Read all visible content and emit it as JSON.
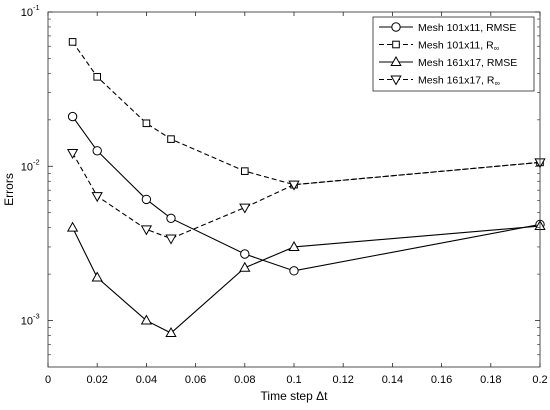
{
  "chart_data": {
    "type": "line",
    "xlabel": "Time step Δt",
    "ylabel": "Errors",
    "yscale": "log",
    "xlim": [
      0,
      0.2
    ],
    "ylim": [
      0.0005,
      0.1
    ],
    "x_ticks": [
      0,
      0.02,
      0.04,
      0.06,
      0.08,
      0.1,
      0.12,
      0.14,
      0.16,
      0.18,
      0.2
    ],
    "x_tick_labels": [
      "0",
      "0.02",
      "0.04",
      "0.06",
      "0.08",
      "0.1",
      "0.12",
      "0.14",
      "0.16",
      "0.18",
      "0.2"
    ],
    "y_ticks": [
      {
        "value": 0.001,
        "base": "10",
        "exp": "-3"
      },
      {
        "value": 0.01,
        "base": "10",
        "exp": "-2"
      },
      {
        "value": 0.1,
        "base": "10",
        "exp": "-1"
      }
    ],
    "grid": false,
    "legend_position": "top-right",
    "series": [
      {
        "name": "Mesh 101x11, RMSE",
        "name_base": "Mesh 101x11, RMSE",
        "name_sub": "",
        "marker": "circle",
        "line": "solid",
        "x": [
          0.01,
          0.02,
          0.04,
          0.05,
          0.08,
          0.1,
          0.2
        ],
        "y": [
          0.021,
          0.0126,
          0.0061,
          0.0046,
          0.0027,
          0.0021,
          0.0042
        ]
      },
      {
        "name": "Mesh 101x11, R∞",
        "name_base": "Mesh 101x11, R",
        "name_sub": "∞",
        "marker": "square",
        "line": "dashed",
        "x": [
          0.01,
          0.02,
          0.04,
          0.05,
          0.08,
          0.1,
          0.2
        ],
        "y": [
          0.064,
          0.038,
          0.019,
          0.015,
          0.0093,
          0.0076,
          0.0106
        ]
      },
      {
        "name": "Mesh 161x17, RMSE",
        "name_base": "Mesh 161x17, RMSE",
        "name_sub": "",
        "marker": "triangle-up",
        "line": "solid",
        "x": [
          0.01,
          0.02,
          0.04,
          0.05,
          0.08,
          0.1,
          0.2
        ],
        "y": [
          0.004,
          0.0019,
          0.001,
          0.00083,
          0.0022,
          0.003,
          0.0041
        ]
      },
      {
        "name": "Mesh 161x17, R∞",
        "name_base": "Mesh 161x17, R",
        "name_sub": "∞",
        "marker": "triangle-down",
        "line": "dashed",
        "x": [
          0.01,
          0.02,
          0.04,
          0.05,
          0.08,
          0.1,
          0.2
        ],
        "y": [
          0.0122,
          0.0064,
          0.0039,
          0.0034,
          0.0054,
          0.0076,
          0.0106
        ]
      }
    ]
  }
}
